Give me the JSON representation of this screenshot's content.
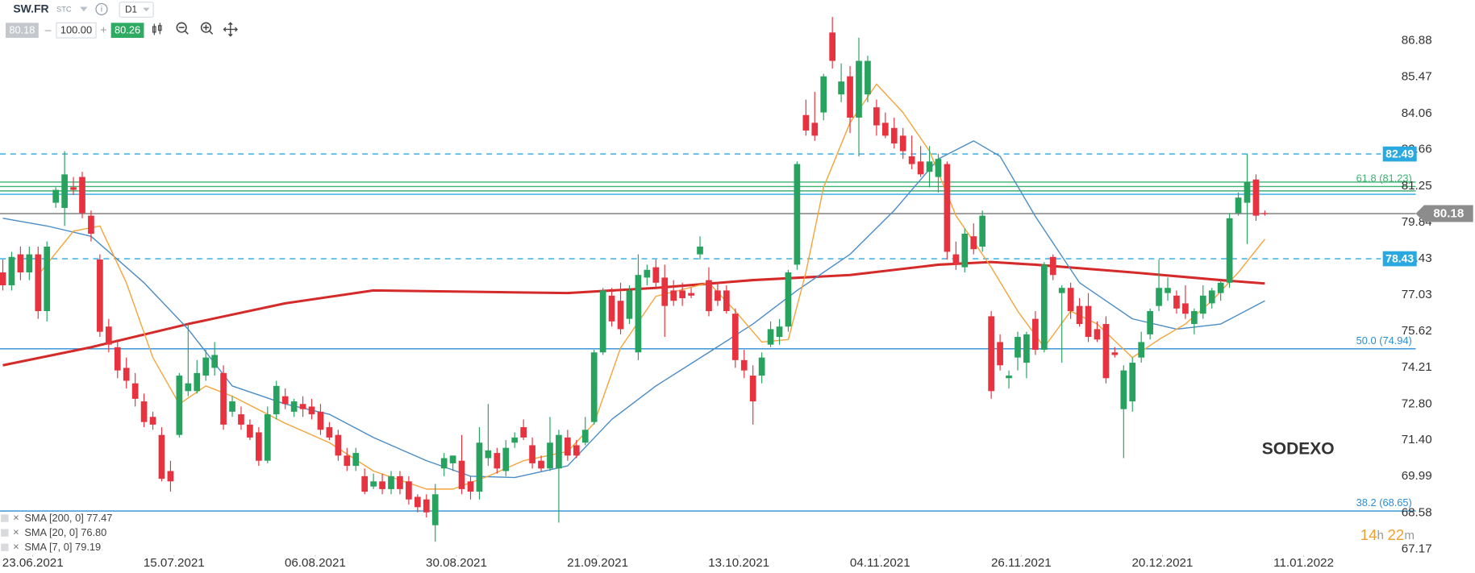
{
  "toolbar": {
    "symbol": "SW.FR",
    "market": "STC",
    "interval": "D1",
    "bid": 80.18,
    "volume": {
      "value": 100,
      "label": "100.00"
    },
    "ask": 80.26
  },
  "watermark": "SODEXO",
  "countdown": {
    "hours": "14",
    "hours_unit": "h",
    "minutes": "22",
    "minutes_unit": "m"
  },
  "chart_data": {
    "type": "candlestick",
    "name": "SW.FR",
    "grid": false,
    "up_color": "#27a35f",
    "down_color": "#e6333f",
    "xlim": [
      -0.32,
      160.1
    ],
    "ylim": [
      66.95,
      88.45
    ],
    "xticks": [
      {
        "value": 3.4,
        "label": "23.06.2021"
      },
      {
        "value": 19.4,
        "label": "15.07.2021"
      },
      {
        "value": 35.4,
        "label": "06.08.2021"
      },
      {
        "value": 51.4,
        "label": "30.08.2021"
      },
      {
        "value": 67.4,
        "label": "21.09.2021"
      },
      {
        "value": 83.4,
        "label": "13.10.2021"
      },
      {
        "value": 99.4,
        "label": "04.11.2021"
      },
      {
        "value": 115.4,
        "label": "26.11.2021"
      },
      {
        "value": 131.4,
        "label": "20.12.2021"
      },
      {
        "value": 147.4,
        "label": "11.01.2022"
      }
    ],
    "yticks": [
      86.88,
      85.47,
      84.06,
      82.66,
      81.25,
      79.84,
      78.43,
      77.03,
      75.62,
      74.21,
      {
        "value": 72.8,
        "label": "72.80"
      },
      {
        "value": 71.4,
        "label": "71.40"
      },
      69.99,
      68.58,
      67.17
    ],
    "ohlc": [
      [
        77.9,
        78.4,
        77.2,
        77.4
      ],
      [
        77.4,
        78.7,
        77.2,
        78.5
      ],
      [
        78.6,
        78.9,
        77.6,
        77.9
      ],
      [
        77.9,
        78.9,
        77.6,
        78.6
      ],
      [
        78.6,
        78.9,
        76.1,
        76.4
      ],
      [
        76.4,
        79.1,
        76.0,
        78.9
      ],
      [
        80.6,
        81.2,
        80.4,
        81.1
      ],
      [
        80.4,
        82.6,
        79.7,
        81.7
      ],
      [
        81.2,
        81.6,
        80.9,
        81.1
      ],
      [
        81.6,
        81.8,
        80.0,
        80.2
      ],
      [
        80.1,
        80.3,
        79.1,
        79.4
      ],
      [
        78.4,
        78.6,
        75.4,
        75.6
      ],
      [
        75.8,
        76.1,
        74.8,
        75.1
      ],
      [
        75.0,
        75.3,
        73.8,
        74.1
      ],
      [
        74.2,
        74.6,
        73.4,
        73.7
      ],
      [
        73.6,
        74.0,
        72.7,
        73.0
      ],
      [
        72.9,
        73.2,
        71.9,
        72.1
      ],
      [
        72.3,
        72.5,
        71.8,
        72.0
      ],
      [
        71.6,
        71.9,
        69.8,
        69.9
      ],
      [
        70.2,
        70.6,
        69.4,
        69.8
      ],
      [
        71.6,
        74.0,
        71.5,
        73.9
      ],
      [
        73.3,
        75.9,
        73.1,
        73.6
      ],
      [
        73.3,
        74.5,
        73.2,
        74.0
      ],
      [
        73.9,
        74.9,
        73.7,
        74.6
      ],
      [
        74.2,
        75.2,
        73.9,
        74.7
      ],
      [
        74.0,
        74.3,
        71.8,
        72.0
      ],
      [
        72.5,
        73.1,
        72.3,
        72.9
      ],
      [
        72.4,
        72.7,
        71.8,
        72.0
      ],
      [
        72.0,
        72.2,
        71.4,
        71.5
      ],
      [
        71.7,
        71.9,
        70.4,
        70.6
      ],
      [
        70.6,
        72.7,
        70.5,
        72.4
      ],
      [
        72.4,
        73.7,
        72.2,
        73.5
      ],
      [
        73.1,
        73.4,
        72.6,
        72.8
      ],
      [
        72.5,
        73.0,
        72.3,
        72.9
      ],
      [
        72.8,
        73.1,
        72.3,
        72.6
      ],
      [
        72.7,
        73.0,
        72.2,
        72.4
      ],
      [
        72.5,
        72.8,
        71.6,
        71.8
      ],
      [
        71.9,
        72.1,
        71.4,
        71.5
      ],
      [
        71.6,
        71.8,
        70.6,
        70.8
      ],
      [
        70.8,
        71.1,
        70.2,
        70.4
      ],
      [
        70.4,
        71.1,
        70.2,
        70.9
      ],
      [
        70.0,
        70.3,
        69.3,
        69.4
      ],
      [
        69.6,
        70.1,
        69.5,
        69.8
      ],
      [
        69.8,
        70.1,
        69.3,
        69.5
      ],
      [
        69.5,
        70.2,
        69.3,
        70.0
      ],
      [
        70.0,
        70.2,
        69.3,
        69.5
      ],
      [
        69.8,
        70.0,
        68.9,
        69.1
      ],
      [
        69.2,
        69.3,
        68.6,
        68.8
      ],
      [
        69.1,
        69.3,
        68.4,
        68.6
      ],
      [
        68.1,
        69.7,
        67.46,
        69.3
      ],
      [
        70.3,
        70.9,
        70.0,
        70.7
      ],
      [
        70.5,
        70.8,
        70.2,
        70.8
      ],
      [
        70.6,
        71.6,
        69.3,
        69.5
      ],
      [
        69.8,
        70.0,
        69.1,
        69.4
      ],
      [
        69.4,
        71.9,
        69.1,
        71.3
      ],
      [
        70.7,
        72.8,
        70.4,
        71.0
      ],
      [
        70.9,
        71.1,
        70.1,
        70.3
      ],
      [
        70.2,
        71.4,
        70.0,
        71.1
      ],
      [
        71.3,
        71.7,
        71.1,
        71.5
      ],
      [
        71.9,
        72.2,
        71.4,
        71.5
      ],
      [
        71.2,
        71.5,
        70.3,
        70.5
      ],
      [
        70.6,
        70.8,
        70.2,
        70.3
      ],
      [
        70.3,
        72.3,
        70.2,
        71.3
      ],
      [
        70.3,
        71.8,
        68.2,
        71.6
      ],
      [
        71.5,
        71.8,
        70.6,
        70.8
      ],
      [
        71.2,
        71.4,
        70.7,
        70.8
      ],
      [
        71.3,
        72.3,
        71.2,
        71.8
      ],
      [
        72.1,
        74.9,
        72.0,
        74.8
      ],
      [
        74.8,
        77.3,
        74.7,
        77.2
      ],
      [
        77.0,
        77.3,
        75.8,
        76.0
      ],
      [
        76.8,
        77.5,
        75.5,
        75.7
      ],
      [
        76.1,
        77.4,
        75.9,
        77.2
      ],
      [
        74.8,
        78.6,
        74.5,
        77.8
      ],
      [
        77.7,
        78.2,
        77.4,
        78.0
      ],
      [
        78.1,
        78.4,
        77.3,
        77.5
      ],
      [
        77.7,
        78.2,
        75.4,
        76.6
      ],
      [
        77.2,
        77.6,
        76.6,
        76.8
      ],
      [
        77.2,
        77.5,
        76.6,
        76.9
      ],
      [
        77.1,
        77.3,
        76.9,
        77.0
      ],
      [
        78.6,
        79.3,
        78.4,
        78.9
      ],
      [
        77.6,
        78.1,
        76.2,
        76.4
      ],
      [
        77.2,
        77.5,
        76.6,
        76.8
      ],
      [
        77.2,
        77.4,
        76.3,
        76.4
      ],
      [
        76.3,
        76.5,
        74.2,
        74.5
      ],
      [
        74.5,
        74.9,
        73.8,
        74.1
      ],
      [
        73.9,
        74.3,
        72.0,
        72.9
      ],
      [
        73.9,
        74.8,
        73.6,
        74.6
      ],
      [
        75.1,
        76.0,
        75.0,
        75.7
      ],
      [
        75.4,
        76.1,
        75.1,
        75.8
      ],
      [
        75.8,
        78.0,
        75.6,
        77.9
      ],
      [
        78.2,
        82.2,
        78.0,
        82.1
      ],
      [
        84.0,
        84.6,
        83.2,
        83.4
      ],
      [
        83.7,
        84.9,
        83.0,
        83.2
      ],
      [
        84.1,
        85.6,
        83.8,
        85.5
      ],
      [
        87.2,
        87.8,
        85.8,
        86.1
      ],
      [
        84.8,
        86.0,
        84.5,
        85.3
      ],
      [
        85.5,
        85.9,
        83.3,
        83.9
      ],
      [
        83.9,
        87.0,
        82.4,
        86.1
      ],
      [
        84.8,
        86.3,
        84.5,
        86.1
      ],
      [
        84.3,
        84.6,
        83.2,
        83.6
      ],
      [
        83.7,
        84.1,
        83.1,
        83.2
      ],
      [
        83.5,
        83.9,
        82.7,
        82.9
      ],
      [
        83.2,
        83.5,
        82.3,
        82.6
      ],
      [
        82.4,
        83.2,
        81.9,
        82.1
      ],
      [
        82.2,
        82.8,
        81.6,
        81.7
      ],
      [
        81.8,
        82.8,
        81.2,
        82.2
      ],
      [
        81.6,
        82.5,
        81.0,
        82.3
      ],
      [
        82.1,
        82.2,
        78.4,
        78.7
      ],
      [
        78.6,
        79.1,
        78.0,
        78.2
      ],
      [
        78.1,
        79.6,
        77.9,
        79.4
      ],
      [
        79.3,
        79.8,
        78.6,
        78.8
      ],
      [
        78.9,
        80.3,
        78.7,
        80.1
      ],
      [
        76.2,
        76.4,
        73.0,
        73.3
      ],
      [
        75.2,
        75.5,
        74.1,
        74.3
      ],
      [
        73.8,
        74.1,
        73.4,
        73.9
      ],
      [
        74.6,
        75.6,
        74.1,
        75.4
      ],
      [
        74.4,
        75.6,
        73.8,
        75.5
      ],
      [
        76.1,
        76.4,
        74.7,
        74.9
      ],
      [
        74.9,
        78.3,
        74.8,
        78.2
      ],
      [
        78.5,
        78.6,
        77.6,
        77.8
      ],
      [
        77.1,
        77.4,
        74.4,
        77.3
      ],
      [
        77.3,
        77.5,
        76.1,
        76.4
      ],
      [
        76.6,
        76.9,
        75.8,
        75.9
      ],
      [
        76.6,
        77.1,
        75.2,
        75.4
      ],
      [
        75.7,
        76.0,
        75.2,
        75.3
      ],
      [
        75.9,
        76.2,
        73.6,
        73.8
      ],
      [
        74.8,
        75.0,
        74.6,
        74.7
      ],
      [
        72.6,
        74.3,
        70.7,
        74.1
      ],
      [
        72.9,
        74.6,
        72.5,
        74.4
      ],
      [
        74.6,
        75.6,
        74.4,
        75.2
      ],
      [
        75.5,
        76.5,
        75.3,
        76.4
      ],
      [
        76.6,
        78.4,
        76.4,
        77.3
      ],
      [
        77.1,
        77.7,
        76.8,
        77.3
      ],
      [
        77.0,
        77.2,
        76.3,
        76.5
      ],
      [
        76.7,
        77.4,
        76.1,
        76.3
      ],
      [
        75.9,
        76.5,
        75.5,
        76.4
      ],
      [
        76.3,
        77.4,
        76.1,
        77.0
      ],
      [
        76.7,
        77.3,
        76.5,
        77.2
      ],
      [
        77.1,
        77.6,
        76.8,
        77.5
      ],
      [
        77.5,
        80.2,
        77.3,
        80.0
      ],
      [
        80.2,
        81.0,
        80.1,
        80.8
      ],
      [
        80.6,
        82.49,
        79.0,
        81.4
      ],
      [
        81.5,
        81.7,
        79.9,
        80.1
      ],
      [
        80.2,
        80.3,
        80.1,
        80.18
      ]
    ],
    "series": [
      {
        "name": "SMA [200, 0] 77.47",
        "color": "#d42a2a",
        "width": 2.6,
        "x": [
          0,
          10,
          21,
          32,
          42,
          53,
          64,
          74,
          85,
          96,
          106,
          112,
          117,
          128,
          138,
          143
        ],
        "values": [
          74.3,
          75.0,
          75.9,
          76.7,
          77.2,
          77.15,
          77.1,
          77.3,
          77.6,
          77.8,
          78.2,
          78.3,
          78.2,
          77.9,
          77.6,
          77.47
        ]
      },
      {
        "name": "SMA [20, 0] 76.80",
        "color": "#4a8cc7",
        "width": 1.2,
        "x": [
          0,
          5,
          10,
          16,
          21,
          26,
          32,
          37,
          42,
          48,
          53,
          58,
          64,
          69,
          74,
          80,
          85,
          90,
          96,
          101,
          106,
          110,
          113,
          117,
          122,
          128,
          133,
          138,
          143
        ],
        "values": [
          80.0,
          79.7,
          79.3,
          77.5,
          75.7,
          73.5,
          72.8,
          72.4,
          71.5,
          70.6,
          70.0,
          69.95,
          70.4,
          72.2,
          73.5,
          74.8,
          75.9,
          77.2,
          78.6,
          80.3,
          82.3,
          83.0,
          82.4,
          80.07,
          77.5,
          76.1,
          75.7,
          75.9,
          76.8
        ]
      },
      {
        "name": "SMA [7, 0] 79.19",
        "color": "#f5a43a",
        "width": 1.2,
        "x": [
          4,
          8,
          11,
          14,
          17,
          20,
          23,
          26,
          32,
          37,
          42,
          48,
          51,
          55,
          59,
          64,
          67,
          70,
          74,
          80,
          83,
          86,
          89,
          91,
          93,
          96,
          99,
          102,
          105,
          108,
          112,
          115,
          118,
          121,
          124,
          128,
          131,
          134,
          137,
          140,
          143
        ],
        "values": [
          77.8,
          79.5,
          79.7,
          77.5,
          74.6,
          72.8,
          73.5,
          73.1,
          72.05,
          71.3,
          70.2,
          69.5,
          69.5,
          70.0,
          70.6,
          70.96,
          72.05,
          74.97,
          76.97,
          77.5,
          76.4,
          75.2,
          75.3,
          77.9,
          81.2,
          83.7,
          85.2,
          84.1,
          82.6,
          80.1,
          78.1,
          76.4,
          75.0,
          76.4,
          75.9,
          74.6,
          75.3,
          75.9,
          76.8,
          77.9,
          79.19
        ]
      }
    ],
    "levels": [
      {
        "value": 82.49,
        "color": "#29a9e0",
        "dashed": true,
        "tagged": true
      },
      {
        "value": 78.43,
        "color": "#29a9e0",
        "dashed": true,
        "tagged": true
      },
      {
        "value": 81.4,
        "color": "#3cb371",
        "dashed": false,
        "tagged": false
      },
      {
        "value": 81.06,
        "color": "#3cb371",
        "dashed": false,
        "tagged": false
      },
      {
        "value": 80.93,
        "color": "#29a9e0",
        "dashed": false,
        "tagged": false
      }
    ],
    "fibonacci": [
      {
        "label": "61.8 (81.23)",
        "value": 81.23,
        "color": "#3cb371"
      },
      {
        "label": "50.0 (74.94)",
        "value": 74.94,
        "color": "#2b8ed6"
      },
      {
        "label": "38.2 (68.65)",
        "value": 68.65,
        "color": "#2b8ed6"
      }
    ],
    "last_price": 80.18
  }
}
